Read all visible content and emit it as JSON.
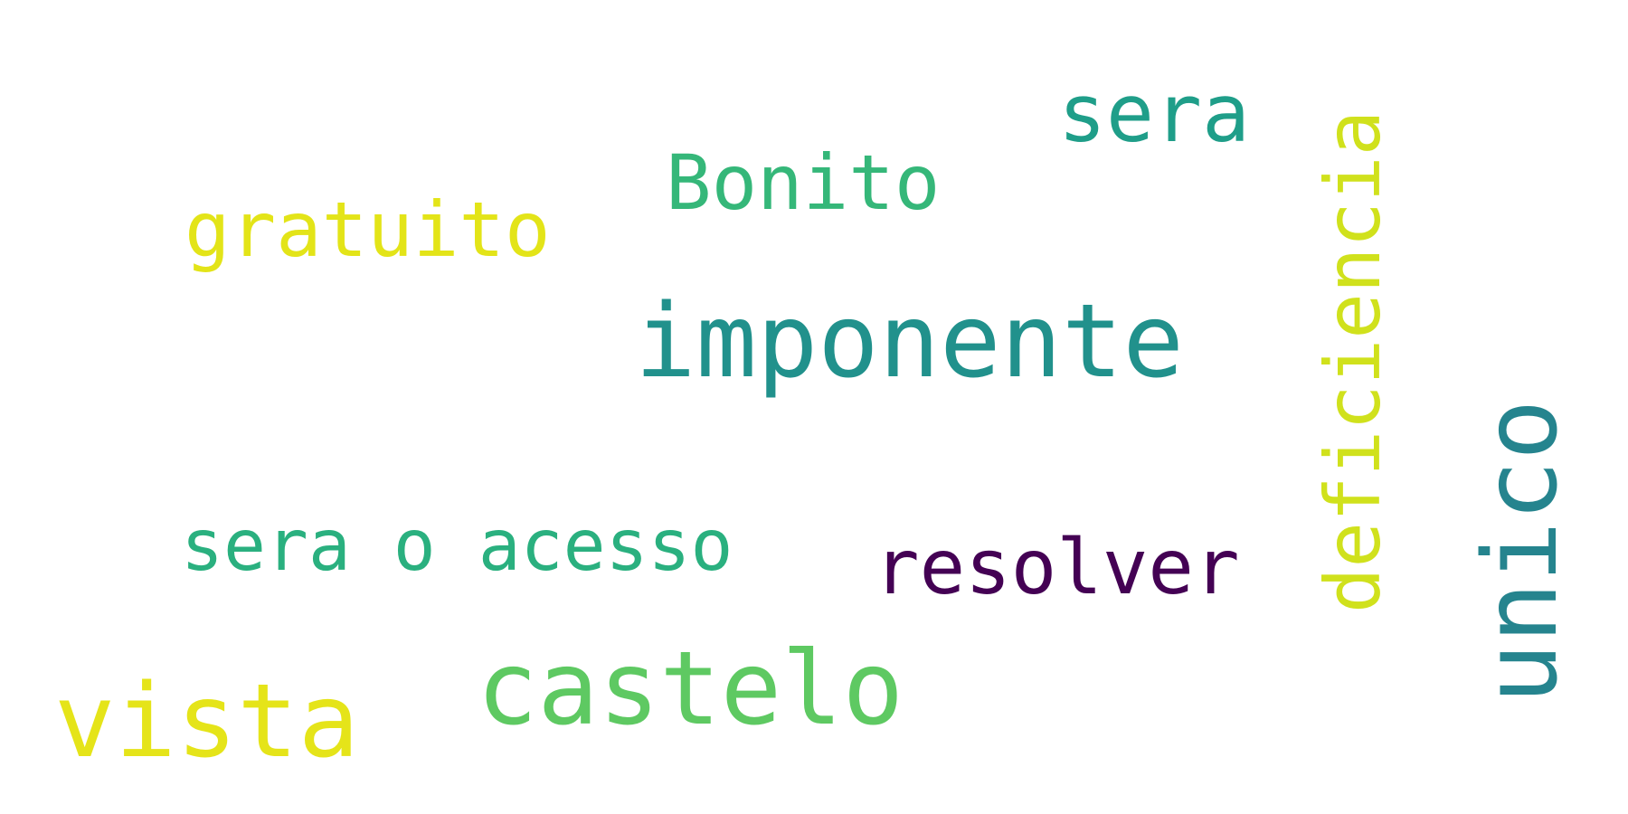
{
  "words": [
    {
      "id": "sera-top",
      "text": "sera",
      "color": "#1f9e89"
    },
    {
      "id": "bonito",
      "text": "Bonito",
      "color": "#35b779"
    },
    {
      "id": "gratuito",
      "text": "gratuito",
      "color": "#e3e418"
    },
    {
      "id": "imponente",
      "text": "imponente",
      "color": "#21918c"
    },
    {
      "id": "deficiencia",
      "text": "deficiencia",
      "color": "#d0e11c"
    },
    {
      "id": "unico",
      "text": "unico",
      "color": "#25848e"
    },
    {
      "id": "sera-o-acesso",
      "text": "sera o acesso",
      "color": "#2ab07f"
    },
    {
      "id": "resolver",
      "text": "resolver",
      "color": "#440154"
    },
    {
      "id": "castelo",
      "text": "castelo",
      "color": "#5ec962"
    },
    {
      "id": "vista",
      "text": "vista",
      "color": "#e5e419"
    }
  ]
}
